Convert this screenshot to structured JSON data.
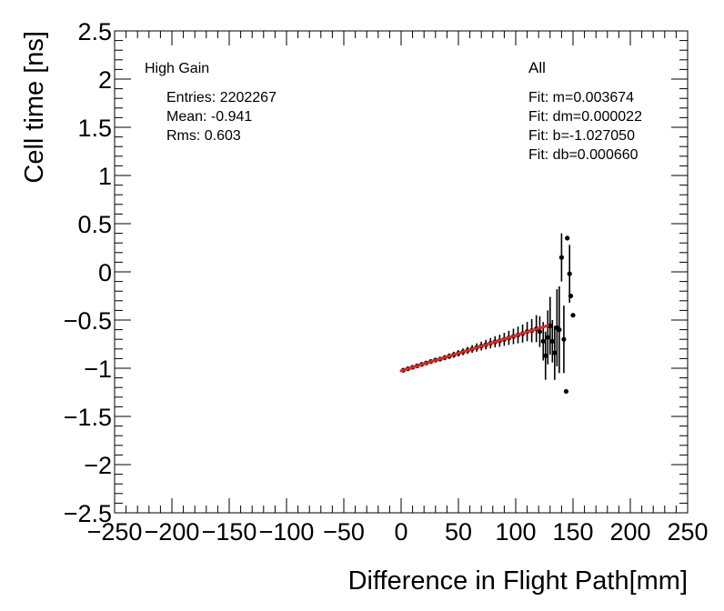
{
  "chart_data": {
    "type": "scatter",
    "xlabel": "Difference in Flight Path[mm]",
    "ylabel": "Cell time [ns]",
    "xlim": [
      -250,
      250
    ],
    "ylim": [
      -2.5,
      2.5
    ],
    "x_major_ticks": [
      -250,
      -200,
      -150,
      -100,
      -50,
      0,
      50,
      100,
      150,
      200,
      250
    ],
    "x_tick_labels": [
      "−250",
      "−200",
      "−150",
      "−100",
      "−50",
      "0",
      "50",
      "100",
      "150",
      "200",
      "250"
    ],
    "y_major_ticks": [
      -2.5,
      -2,
      -1.5,
      -1,
      -0.5,
      0,
      0.5,
      1,
      1.5,
      2,
      2.5
    ],
    "y_tick_labels": [
      "−2.5",
      "−2",
      "−1.5",
      "−1",
      "−0.5",
      "0",
      "0.5",
      "1",
      "1.5",
      "2",
      "2.5"
    ],
    "grid": false,
    "gain_label": "High Gain",
    "stats": {
      "entries": "Entries: 2202267",
      "mean": "Mean: -0.941",
      "rms": "Rms: 0.603"
    },
    "selection_label": "All",
    "fit": {
      "m_text": "Fit: m=0.003674",
      "dm_text": "Fit: dm=0.000022",
      "b_text": "Fit: b=-1.027050",
      "db_text": "Fit: db=0.000660",
      "m": 0.003674,
      "b": -1.02705,
      "x_range": [
        0,
        128
      ],
      "color": "#e8241c"
    },
    "marker_color": "#000000",
    "points": [
      {
        "x": 2,
        "y": -1.02,
        "e": 0.01
      },
      {
        "x": 6,
        "y": -1.005,
        "e": 0.012
      },
      {
        "x": 10,
        "y": -0.99,
        "e": 0.013
      },
      {
        "x": 14,
        "y": -0.975,
        "e": 0.015
      },
      {
        "x": 18,
        "y": -0.96,
        "e": 0.017
      },
      {
        "x": 22,
        "y": -0.945,
        "e": 0.019
      },
      {
        "x": 26,
        "y": -0.93,
        "e": 0.021
      },
      {
        "x": 30,
        "y": -0.915,
        "e": 0.023
      },
      {
        "x": 34,
        "y": -0.905,
        "e": 0.025
      },
      {
        "x": 38,
        "y": -0.89,
        "e": 0.027
      },
      {
        "x": 42,
        "y": -0.875,
        "e": 0.029
      },
      {
        "x": 46,
        "y": -0.86,
        "e": 0.031
      },
      {
        "x": 50,
        "y": -0.845,
        "e": 0.033
      },
      {
        "x": 54,
        "y": -0.83,
        "e": 0.035
      },
      {
        "x": 58,
        "y": -0.815,
        "e": 0.037
      },
      {
        "x": 62,
        "y": -0.8,
        "e": 0.04
      },
      {
        "x": 66,
        "y": -0.785,
        "e": 0.043
      },
      {
        "x": 70,
        "y": -0.77,
        "e": 0.046
      },
      {
        "x": 74,
        "y": -0.755,
        "e": 0.05
      },
      {
        "x": 78,
        "y": -0.74,
        "e": 0.054
      },
      {
        "x": 82,
        "y": -0.725,
        "e": 0.058
      },
      {
        "x": 86,
        "y": -0.715,
        "e": 0.063
      },
      {
        "x": 90,
        "y": -0.7,
        "e": 0.068
      },
      {
        "x": 94,
        "y": -0.685,
        "e": 0.074
      },
      {
        "x": 98,
        "y": -0.67,
        "e": 0.08
      },
      {
        "x": 102,
        "y": -0.655,
        "e": 0.087
      },
      {
        "x": 106,
        "y": -0.64,
        "e": 0.094
      },
      {
        "x": 110,
        "y": -0.62,
        "e": 0.1
      },
      {
        "x": 114,
        "y": -0.61,
        "e": 0.12
      },
      {
        "x": 118,
        "y": -0.59,
        "e": 0.14
      },
      {
        "x": 121,
        "y": -0.62,
        "e": 0.16
      },
      {
        "x": 124,
        "y": -0.72,
        "e": 0.2
      },
      {
        "x": 126,
        "y": -0.87,
        "e": 0.25
      },
      {
        "x": 128,
        "y": -0.68,
        "e": 0.28
      },
      {
        "x": 130,
        "y": -0.56,
        "e": 0.3
      },
      {
        "x": 132,
        "y": -0.72,
        "e": 0.22
      },
      {
        "x": 134,
        "y": -0.84,
        "e": 0.28
      },
      {
        "x": 136,
        "y": -0.58,
        "e": 0.4
      },
      {
        "x": 138,
        "y": -0.6,
        "e": 0.45
      },
      {
        "x": 140,
        "y": 0.15,
        "e": 0.25
      },
      {
        "x": 142,
        "y": -0.7,
        "e": 0.35
      },
      {
        "x": 144,
        "y": -1.24,
        "e": 0.01
      },
      {
        "x": 145,
        "y": 0.35,
        "e": 0.01
      },
      {
        "x": 147,
        "y": -0.02,
        "e": 0.3
      },
      {
        "x": 148,
        "y": -0.25,
        "e": 0.01
      },
      {
        "x": 150,
        "y": -0.45,
        "e": 0.01
      }
    ]
  }
}
